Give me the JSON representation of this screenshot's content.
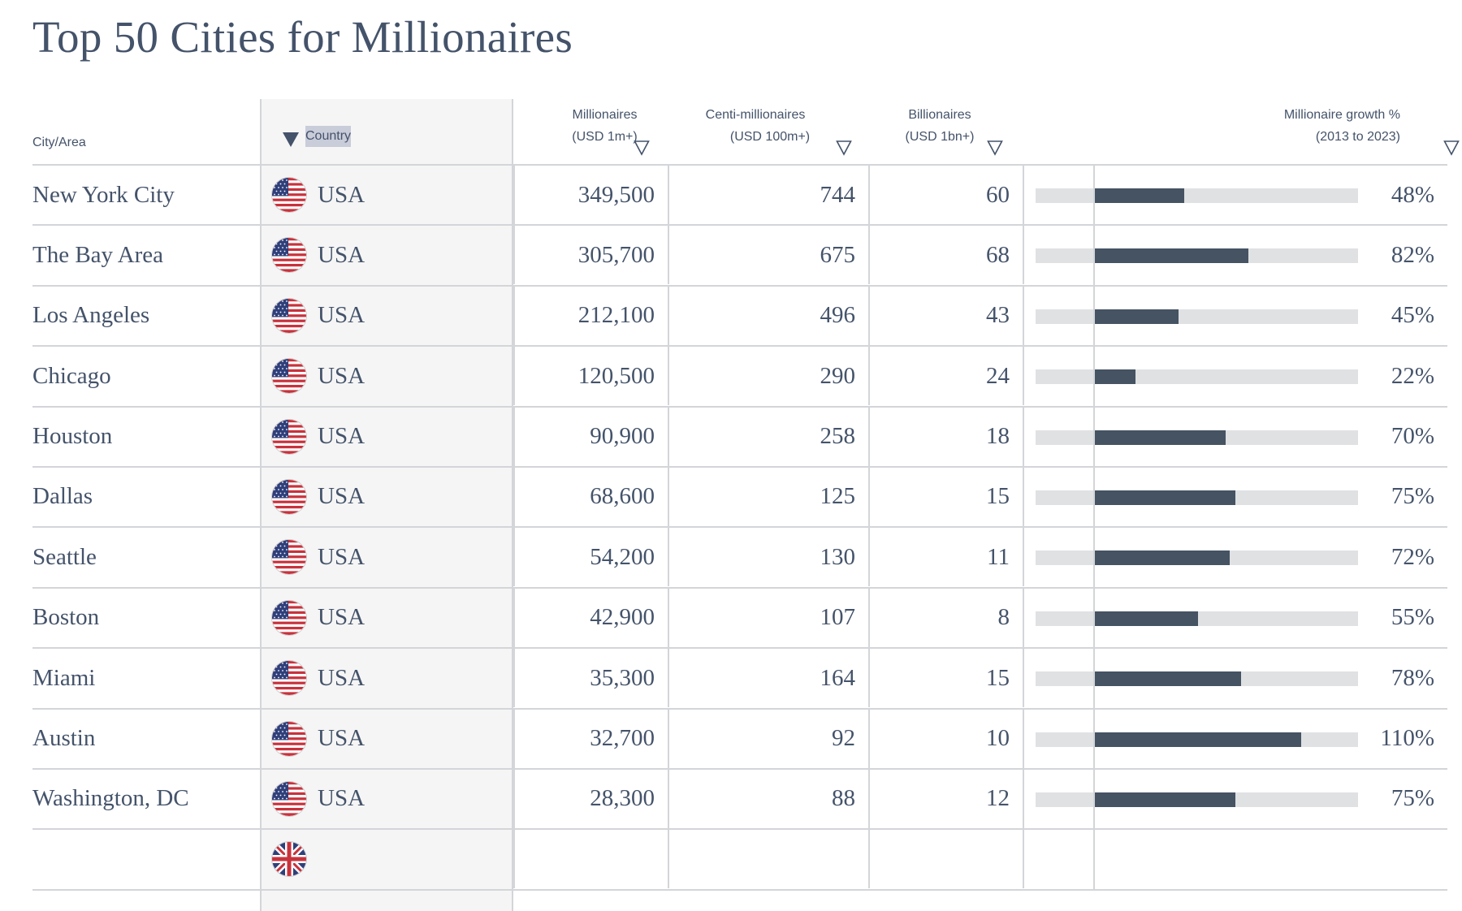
{
  "title": "Top 50 Cities for Millionaires",
  "colors": {
    "text": "#44536a",
    "bar": "#455363",
    "track": "#e0e1e3",
    "grid": "#d3d5d8",
    "country_column_bg": "#f5f5f5",
    "selection_highlight": "#c9ccd9"
  },
  "columns": {
    "city": {
      "label": "City/Area"
    },
    "country": {
      "label": "Country",
      "sort_icon": "sort-descending-filled-icon",
      "sorted": true
    },
    "millionaires": {
      "line1": "Millionaires",
      "line2": "(USD 1m+)",
      "sort_icon": "filter-triangle-icon"
    },
    "centi": {
      "line1": "Centi-millionaires",
      "line2": "(USD 100m+)",
      "sort_icon": "filter-triangle-icon"
    },
    "billionaires": {
      "line1": "Billionaires",
      "line2": "(USD 1bn+)",
      "sort_icon": "filter-triangle-icon"
    },
    "growth": {
      "line1": "Millionaire growth %",
      "line2": "(2013 to 2023)",
      "sort_icon": "filter-triangle-icon"
    }
  },
  "growth_scale": {
    "min_percent": -31,
    "max_percent": 140
  },
  "rows": [
    {
      "city": "New York City",
      "country": "USA",
      "flag": "usa-flag-icon",
      "millionaires": "349,500",
      "centi": "744",
      "billionaires": "60",
      "growth": "48%",
      "growth_value": 48
    },
    {
      "city": "The Bay Area",
      "country": "USA",
      "flag": "usa-flag-icon",
      "millionaires": "305,700",
      "centi": "675",
      "billionaires": "68",
      "growth": "82%",
      "growth_value": 82
    },
    {
      "city": "Los Angeles",
      "country": "USA",
      "flag": "usa-flag-icon",
      "millionaires": "212,100",
      "centi": "496",
      "billionaires": "43",
      "growth": "45%",
      "growth_value": 45
    },
    {
      "city": "Chicago",
      "country": "USA",
      "flag": "usa-flag-icon",
      "millionaires": "120,500",
      "centi": "290",
      "billionaires": "24",
      "growth": "22%",
      "growth_value": 22
    },
    {
      "city": "Houston",
      "country": "USA",
      "flag": "usa-flag-icon",
      "millionaires": "90,900",
      "centi": "258",
      "billionaires": "18",
      "growth": "70%",
      "growth_value": 70
    },
    {
      "city": "Dallas",
      "country": "USA",
      "flag": "usa-flag-icon",
      "millionaires": "68,600",
      "centi": "125",
      "billionaires": "15",
      "growth": "75%",
      "growth_value": 75
    },
    {
      "city": "Seattle",
      "country": "USA",
      "flag": "usa-flag-icon",
      "millionaires": "54,200",
      "centi": "130",
      "billionaires": "11",
      "growth": "72%",
      "growth_value": 72
    },
    {
      "city": "Boston",
      "country": "USA",
      "flag": "usa-flag-icon",
      "millionaires": "42,900",
      "centi": "107",
      "billionaires": "8",
      "growth": "55%",
      "growth_value": 55
    },
    {
      "city": "Miami",
      "country": "USA",
      "flag": "usa-flag-icon",
      "millionaires": "35,300",
      "centi": "164",
      "billionaires": "15",
      "growth": "78%",
      "growth_value": 78
    },
    {
      "city": "Austin",
      "country": "USA",
      "flag": "usa-flag-icon",
      "millionaires": "32,700",
      "centi": "92",
      "billionaires": "10",
      "growth": "110%",
      "growth_value": 110
    },
    {
      "city": "Washington, DC",
      "country": "USA",
      "flag": "usa-flag-icon",
      "millionaires": "28,300",
      "centi": "88",
      "billionaires": "12",
      "growth": "75%",
      "growth_value": 75
    }
  ],
  "partial_row": {
    "flag": "uk-flag-icon"
  }
}
